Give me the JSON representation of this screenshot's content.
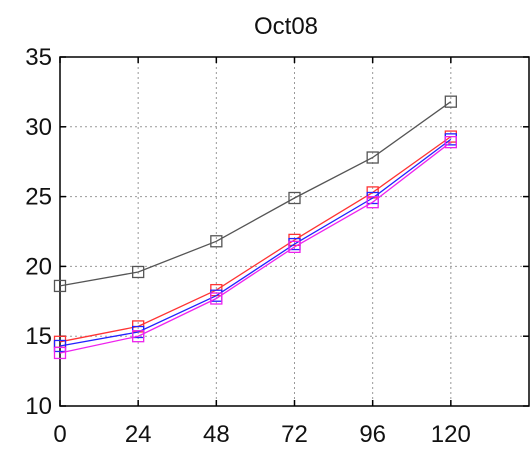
{
  "chart_data": {
    "type": "line",
    "title": "Oct08",
    "xlabel": "",
    "ylabel": "",
    "x": [
      0,
      24,
      48,
      72,
      96,
      120
    ],
    "xlim": [
      0,
      144
    ],
    "ylim": [
      10,
      35
    ],
    "xticks": [
      "0",
      "24",
      "48",
      "72",
      "96",
      "120"
    ],
    "yticks": [
      "10",
      "15",
      "20",
      "25",
      "30",
      "35"
    ],
    "grid": true,
    "marker": "square",
    "series": [
      {
        "color": "#555555",
        "values": [
          18.6,
          19.6,
          21.8,
          24.9,
          27.8,
          31.8
        ]
      },
      {
        "color": "#ff3333",
        "values": [
          14.6,
          15.7,
          18.3,
          21.9,
          25.3,
          29.3
        ]
      },
      {
        "color": "#2222ff",
        "values": [
          14.3,
          15.3,
          17.9,
          21.6,
          24.9,
          29.1
        ]
      },
      {
        "color": "#ee22ee",
        "values": [
          13.8,
          15.0,
          17.7,
          21.4,
          24.6,
          28.9
        ]
      }
    ]
  }
}
